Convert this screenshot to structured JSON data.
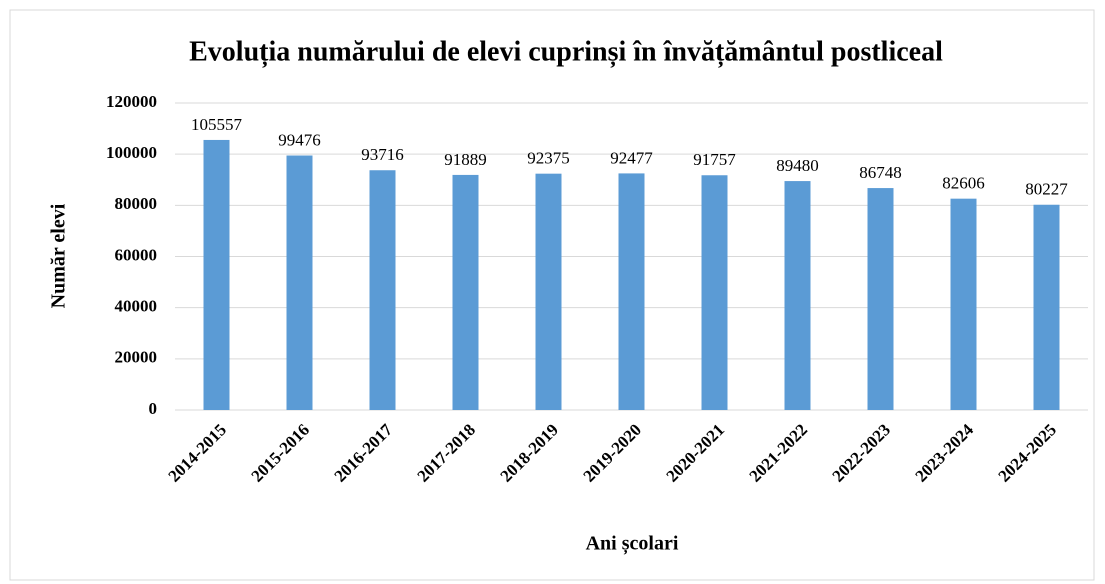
{
  "chart_data": {
    "type": "bar",
    "title": "Evoluția numărului de elevi cuprinși în învățământul postliceal",
    "xlabel": "Ani școlari",
    "ylabel": "Număr elevi",
    "categories": [
      "2014-2015",
      "2015-2016",
      "2016-2017",
      "2017-2018",
      "2018-2019",
      "2019-2020",
      "2020-2021",
      "2021-2022",
      "2022-2023",
      "2023-2024",
      "2024-2025"
    ],
    "values": [
      105557,
      99476,
      93716,
      91889,
      92375,
      92477,
      91757,
      89480,
      86748,
      82606,
      80227
    ],
    "color": "#5b9bd5",
    "ylim": [
      0,
      120000
    ],
    "yticks": [
      0,
      20000,
      40000,
      60000,
      80000,
      100000,
      120000
    ],
    "grid": true
  }
}
